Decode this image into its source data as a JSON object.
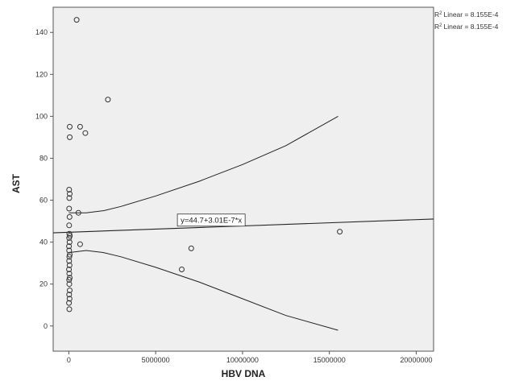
{
  "chart_data": {
    "type": "scatter",
    "xlabel": "HBV DNA",
    "ylabel": "AST",
    "xlim": [
      -900000,
      21000000
    ],
    "ylim": [
      -12,
      152
    ],
    "x_ticks": [
      0,
      5000000,
      10000000,
      15000000,
      20000000
    ],
    "x_tick_labels": [
      "0",
      "5000000",
      "10000000",
      "15000000",
      "20000000"
    ],
    "y_ticks": [
      0,
      20,
      40,
      60,
      80,
      100,
      120,
      140
    ],
    "y_tick_labels": [
      "0",
      "20",
      "40",
      "60",
      "80",
      "100",
      "120",
      "140"
    ],
    "grid": false,
    "legend": {
      "placement": "top-right",
      "entries": [
        {
          "r2_prefix": "R",
          "r2_sup": "2",
          "text": "Linear = 8.155E-4"
        },
        {
          "r2_prefix": "R",
          "r2_sup": "2",
          "text": "Linear = 8.155E-4"
        }
      ]
    },
    "annotation": {
      "text": "y=44.7+3.01E-7*x",
      "x": 8200000,
      "y": 50.7
    },
    "colors": {
      "background": "#efefef",
      "axis": "#555555",
      "marker": "#333333",
      "line": "#222222"
    },
    "points": [
      {
        "x": 450000,
        "y": 146
      },
      {
        "x": 2250000,
        "y": 108
      },
      {
        "x": 650000,
        "y": 95
      },
      {
        "x": 950000,
        "y": 92
      },
      {
        "x": 50000,
        "y": 95
      },
      {
        "x": 50000,
        "y": 90
      },
      {
        "x": 20000,
        "y": 65
      },
      {
        "x": 50000,
        "y": 63
      },
      {
        "x": 30000,
        "y": 61
      },
      {
        "x": 20000,
        "y": 56
      },
      {
        "x": 550000,
        "y": 54
      },
      {
        "x": 40000,
        "y": 52
      },
      {
        "x": 20000,
        "y": 48
      },
      {
        "x": 30000,
        "y": 44
      },
      {
        "x": 60000,
        "y": 43
      },
      {
        "x": 20000,
        "y": 42
      },
      {
        "x": 40000,
        "y": 40
      },
      {
        "x": 10000,
        "y": 38
      },
      {
        "x": 650000,
        "y": 39
      },
      {
        "x": 20000,
        "y": 36
      },
      {
        "x": 50000,
        "y": 34
      },
      {
        "x": 30000,
        "y": 33
      },
      {
        "x": 20000,
        "y": 31
      },
      {
        "x": 40000,
        "y": 29
      },
      {
        "x": 10000,
        "y": 27
      },
      {
        "x": 30000,
        "y": 25
      },
      {
        "x": 50000,
        "y": 23
      },
      {
        "x": 20000,
        "y": 22
      },
      {
        "x": 30000,
        "y": 20
      },
      {
        "x": 50000,
        "y": 17
      },
      {
        "x": 20000,
        "y": 15
      },
      {
        "x": 40000,
        "y": 13
      },
      {
        "x": 10000,
        "y": 11
      },
      {
        "x": 30000,
        "y": 8
      },
      {
        "x": 7050000,
        "y": 37
      },
      {
        "x": 6500000,
        "y": 27
      },
      {
        "x": 15600000,
        "y": 45
      }
    ],
    "fit_line": {
      "intercept": 44.7,
      "slope": 3.01e-07,
      "x_range": [
        -900000,
        21000000
      ]
    },
    "confidence_upper": [
      {
        "x": 0,
        "y": 54
      },
      {
        "x": 1000000,
        "y": 54
      },
      {
        "x": 2000000,
        "y": 55
      },
      {
        "x": 3000000,
        "y": 57
      },
      {
        "x": 5000000,
        "y": 62
      },
      {
        "x": 7500000,
        "y": 69
      },
      {
        "x": 10000000,
        "y": 77
      },
      {
        "x": 12500000,
        "y": 86
      },
      {
        "x": 15500000,
        "y": 100
      }
    ],
    "confidence_lower": [
      {
        "x": 0,
        "y": 35
      },
      {
        "x": 1000000,
        "y": 36
      },
      {
        "x": 2000000,
        "y": 35
      },
      {
        "x": 3000000,
        "y": 33
      },
      {
        "x": 5000000,
        "y": 28
      },
      {
        "x": 7500000,
        "y": 21
      },
      {
        "x": 10000000,
        "y": 13
      },
      {
        "x": 12500000,
        "y": 5
      },
      {
        "x": 15500000,
        "y": -2
      }
    ]
  }
}
